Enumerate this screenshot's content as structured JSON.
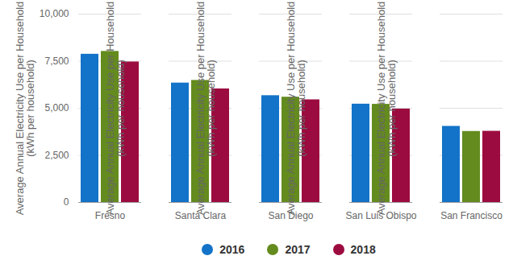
{
  "chart_data": {
    "type": "bar",
    "y_label": "Average Annual Electricity Use per Household (kWh per household)",
    "categories": [
      "Fresno",
      "Santa Clara",
      "San Diego",
      "San Luis Obispo",
      "San Francisco"
    ],
    "series": [
      {
        "name": "2016",
        "color": "#1273c8",
        "values": [
          7870,
          6340,
          5670,
          5220,
          4040
        ]
      },
      {
        "name": "2017",
        "color": "#648b1e",
        "values": [
          8020,
          6480,
          5590,
          5210,
          3770
        ]
      },
      {
        "name": "2018",
        "color": "#9c0b3f",
        "values": [
          7460,
          6030,
          5450,
          4960,
          3780
        ]
      }
    ],
    "ylim": [
      0,
      10000
    ],
    "yticks": [
      0,
      {
        "value": 2500,
        "label": "2,500"
      },
      {
        "value": 5000,
        "label": "5,000"
      },
      {
        "value": 7500,
        "label": "7,500"
      },
      {
        "value": 10000,
        "label": "10,000"
      }
    ],
    "grid": true,
    "legend": "bottom"
  }
}
